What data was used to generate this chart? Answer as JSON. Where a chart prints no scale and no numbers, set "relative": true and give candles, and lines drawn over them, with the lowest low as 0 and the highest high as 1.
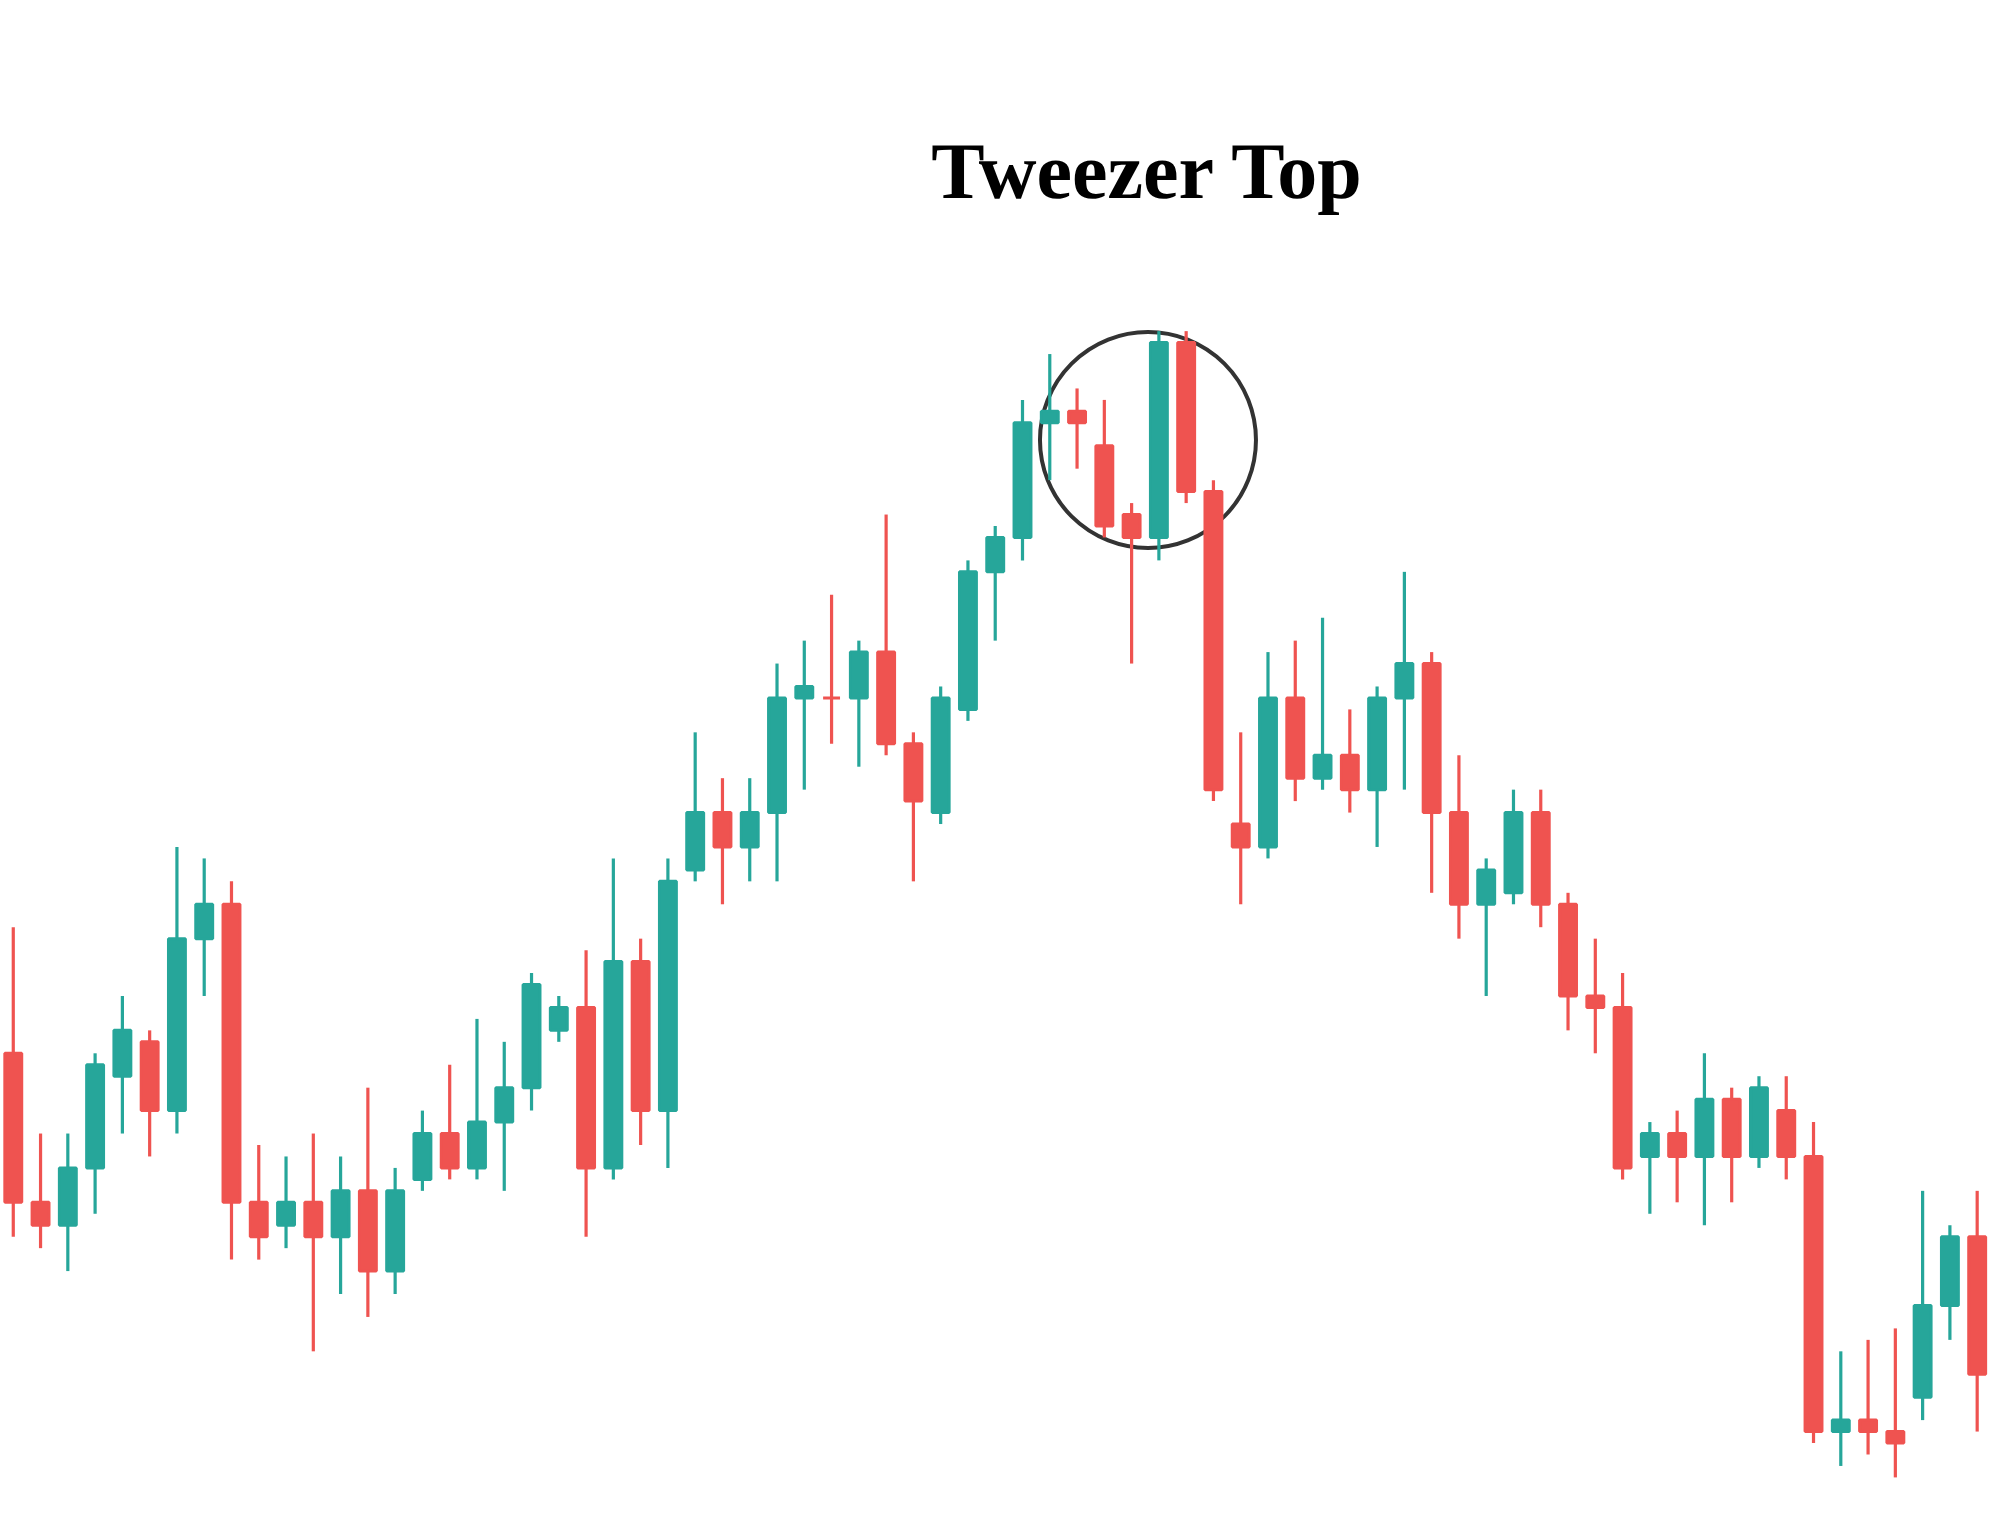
{
  "chart_data": {
    "type": "candlestick",
    "relative": true,
    "categories": [
      null,
      null,
      null,
      null,
      null,
      null,
      null,
      null,
      null,
      null,
      null,
      null,
      null,
      null,
      null,
      null,
      null,
      null,
      null,
      null,
      null,
      null,
      null,
      null,
      null,
      null,
      null,
      null,
      null,
      null,
      null,
      null,
      null,
      null,
      null,
      null,
      null,
      null,
      null,
      null,
      null,
      null,
      null,
      null,
      null,
      null,
      null,
      null,
      null,
      null,
      null,
      null,
      null,
      null,
      null,
      null,
      null,
      null,
      null,
      null,
      null,
      null,
      null,
      null,
      null,
      null,
      null,
      null,
      null,
      null,
      null,
      null,
      null
    ],
    "ohlc": [
      [
        0.37,
        0.48,
        0.21,
        0.24
      ],
      [
        0.24,
        0.3,
        0.2,
        0.22
      ],
      [
        0.22,
        0.3,
        0.18,
        0.27
      ],
      [
        0.27,
        0.37,
        0.23,
        0.36
      ],
      [
        0.35,
        0.42,
        0.3,
        0.39
      ],
      [
        0.38,
        0.39,
        0.28,
        0.32
      ],
      [
        0.32,
        0.55,
        0.3,
        0.47
      ],
      [
        0.47,
        0.54,
        0.42,
        0.5
      ],
      [
        0.5,
        0.52,
        0.19,
        0.24
      ],
      [
        0.24,
        0.29,
        0.19,
        0.21
      ],
      [
        0.22,
        0.28,
        0.2,
        0.24
      ],
      [
        0.24,
        0.3,
        0.11,
        0.21
      ],
      [
        0.21,
        0.28,
        0.16,
        0.25
      ],
      [
        0.25,
        0.34,
        0.14,
        0.18
      ],
      [
        0.18,
        0.27,
        0.16,
        0.25
      ],
      [
        0.26,
        0.32,
        0.25,
        0.3
      ],
      [
        0.3,
        0.36,
        0.26,
        0.27
      ],
      [
        0.27,
        0.4,
        0.26,
        0.31
      ],
      [
        0.31,
        0.38,
        0.25,
        0.34
      ],
      [
        0.34,
        0.44,
        0.32,
        0.43
      ],
      [
        0.39,
        0.42,
        0.38,
        0.41
      ],
      [
        0.41,
        0.46,
        0.21,
        0.27
      ],
      [
        0.27,
        0.54,
        0.26,
        0.45
      ],
      [
        0.45,
        0.47,
        0.29,
        0.32
      ],
      [
        0.32,
        0.54,
        0.27,
        0.52
      ],
      [
        0.53,
        0.65,
        0.52,
        0.58
      ],
      [
        0.58,
        0.61,
        0.5,
        0.55
      ],
      [
        0.55,
        0.61,
        0.52,
        0.58
      ],
      [
        0.58,
        0.71,
        0.52,
        0.68
      ],
      [
        0.68,
        0.73,
        0.6,
        0.69
      ],
      [
        0.68,
        0.77,
        0.64,
        0.68
      ],
      [
        0.68,
        0.73,
        0.62,
        0.72
      ],
      [
        0.72,
        0.84,
        0.63,
        0.64
      ],
      [
        0.64,
        0.65,
        0.52,
        0.59
      ],
      [
        0.58,
        0.69,
        0.57,
        0.68
      ],
      [
        0.67,
        0.8,
        0.66,
        0.79
      ],
      [
        0.79,
        0.83,
        0.73,
        0.82
      ],
      [
        0.82,
        0.94,
        0.8,
        0.92
      ],
      [
        0.92,
        0.98,
        0.87,
        0.93
      ],
      [
        0.93,
        0.95,
        0.88,
        0.92
      ],
      [
        0.9,
        0.94,
        0.82,
        0.83
      ],
      [
        0.84,
        0.85,
        0.71,
        0.82
      ],
      [
        0.82,
        1.0,
        0.8,
        0.99
      ],
      [
        0.99,
        1.0,
        0.85,
        0.86
      ],
      [
        0.86,
        0.87,
        0.59,
        0.6
      ],
      [
        0.57,
        0.65,
        0.5,
        0.55
      ],
      [
        0.55,
        0.72,
        0.54,
        0.68
      ],
      [
        0.68,
        0.73,
        0.59,
        0.61
      ],
      [
        0.61,
        0.75,
        0.6,
        0.63
      ],
      [
        0.63,
        0.67,
        0.58,
        0.6
      ],
      [
        0.6,
        0.69,
        0.55,
        0.68
      ],
      [
        0.68,
        0.79,
        0.6,
        0.71
      ],
      [
        0.71,
        0.72,
        0.51,
        0.58
      ],
      [
        0.58,
        0.63,
        0.47,
        0.5
      ],
      [
        0.5,
        0.54,
        0.42,
        0.53
      ],
      [
        0.51,
        0.6,
        0.5,
        0.58
      ],
      [
        0.58,
        0.6,
        0.48,
        0.5
      ],
      [
        0.5,
        0.51,
        0.39,
        0.42
      ],
      [
        0.42,
        0.47,
        0.37,
        0.41
      ],
      [
        0.41,
        0.44,
        0.26,
        0.27
      ],
      [
        0.28,
        0.31,
        0.23,
        0.3
      ],
      [
        0.3,
        0.32,
        0.24,
        0.28
      ],
      [
        0.28,
        0.37,
        0.22,
        0.33
      ],
      [
        0.33,
        0.34,
        0.24,
        0.28
      ],
      [
        0.28,
        0.35,
        0.27,
        0.34
      ],
      [
        0.32,
        0.35,
        0.26,
        0.28
      ],
      [
        0.28,
        0.31,
        0.03,
        0.04
      ],
      [
        0.04,
        0.11,
        0.01,
        0.05
      ],
      [
        0.05,
        0.12,
        0.02,
        0.04
      ],
      [
        0.04,
        0.13,
        0.0,
        0.03
      ],
      [
        0.07,
        0.25,
        0.05,
        0.15
      ],
      [
        0.15,
        0.22,
        0.12,
        0.21
      ],
      [
        0.21,
        0.25,
        0.04,
        0.09
      ]
    ],
    "colors": [
      "#ef5350",
      "#ef5350",
      "#26a69a",
      "#26a69a",
      "#26a69a",
      "#ef5350",
      "#26a69a",
      "#26a69a",
      "#ef5350",
      "#ef5350",
      "#26a69a",
      "#ef5350",
      "#26a69a",
      "#ef5350",
      "#26a69a",
      "#26a69a",
      "#ef5350",
      "#26a69a",
      "#26a69a",
      "#26a69a",
      "#26a69a",
      "#ef5350",
      "#26a69a",
      "#ef5350",
      "#26a69a",
      "#26a69a",
      "#ef5350",
      "#26a69a",
      "#26a69a",
      "#26a69a",
      "#ef5350",
      "#26a69a",
      "#ef5350",
      "#ef5350",
      "#26a69a",
      "#26a69a",
      "#26a69a",
      "#26a69a",
      "#26a69a",
      "#ef5350",
      "#ef5350",
      "#ef5350",
      "#26a69a",
      "#ef5350",
      "#ef5350",
      "#ef5350",
      "#26a69a",
      "#ef5350",
      "#26a69a",
      "#ef5350",
      "#26a69a",
      "#26a69a",
      "#ef5350",
      "#ef5350",
      "#26a69a",
      "#26a69a",
      "#ef5350",
      "#ef5350",
      "#ef5350",
      "#ef5350",
      "#26a69a",
      "#ef5350",
      "#26a69a",
      "#ef5350",
      "#26a69a",
      "#ef5350",
      "#ef5350",
      "#26a69a",
      "#ef5350",
      "#ef5350",
      "#26a69a",
      "#26a69a",
      "#ef5350"
    ],
    "annotations": [
      "Tweezer Top"
    ]
  }
}
